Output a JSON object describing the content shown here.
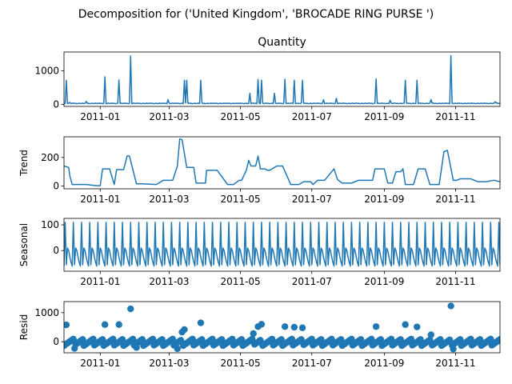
{
  "figure": {
    "title": "Decomposition for ('United Kingdom', 'BROCADE RING PURSE ')",
    "line_color": "#1f77b4",
    "x_tick_labels": [
      "2011-01",
      "2011-03",
      "2011-05",
      "2011-07",
      "2011-09",
      "2011-11"
    ]
  },
  "chart_data": [
    {
      "type": "line",
      "title": "Quantity",
      "ylabel": "",
      "xlim": [
        "2010-12-01",
        "2011-12-09"
      ],
      "ylim": [
        -60,
        1560
      ],
      "y_ticks": [
        0,
        1000
      ],
      "y_tick_labels": [
        "0",
        "1000"
      ],
      "baseline": 30,
      "spikes": [
        {
          "x": "2010-12-03",
          "y": 720
        },
        {
          "x": "2010-12-06",
          "y": 60
        },
        {
          "x": "2010-12-20",
          "y": 90
        },
        {
          "x": "2011-01-05",
          "y": 820
        },
        {
          "x": "2011-01-17",
          "y": 730
        },
        {
          "x": "2011-01-27",
          "y": 1440
        },
        {
          "x": "2011-02-28",
          "y": 140
        },
        {
          "x": "2011-03-14",
          "y": 720
        },
        {
          "x": "2011-03-16",
          "y": 720
        },
        {
          "x": "2011-03-28",
          "y": 720
        },
        {
          "x": "2011-05-09",
          "y": 330
        },
        {
          "x": "2011-05-16",
          "y": 740
        },
        {
          "x": "2011-05-19",
          "y": 720
        },
        {
          "x": "2011-05-30",
          "y": 330
        },
        {
          "x": "2011-06-08",
          "y": 750
        },
        {
          "x": "2011-06-16",
          "y": 720
        },
        {
          "x": "2011-06-23",
          "y": 720
        },
        {
          "x": "2011-07-11",
          "y": 140
        },
        {
          "x": "2011-07-22",
          "y": 180
        },
        {
          "x": "2011-08-25",
          "y": 760
        },
        {
          "x": "2011-09-06",
          "y": 120
        },
        {
          "x": "2011-09-19",
          "y": 720
        },
        {
          "x": "2011-09-29",
          "y": 720
        },
        {
          "x": "2011-10-11",
          "y": 140
        },
        {
          "x": "2011-10-28",
          "y": 1450
        },
        {
          "x": "2011-12-05",
          "y": 80
        }
      ]
    },
    {
      "type": "line",
      "title": "",
      "ylabel": "Trend",
      "xlim": [
        "2010-12-01",
        "2011-12-09"
      ],
      "ylim": [
        -20,
        345
      ],
      "y_ticks": [
        0,
        200
      ],
      "y_tick_labels": [
        "0",
        "200"
      ],
      "x": [
        "2010-12-01",
        "2010-12-05",
        "2010-12-06",
        "2010-12-08",
        "2010-12-20",
        "2010-12-29",
        "2011-01-01",
        "2011-01-03",
        "2011-01-09",
        "2011-01-13",
        "2011-01-15",
        "2011-01-21",
        "2011-01-24",
        "2011-01-26",
        "2011-02-01",
        "2011-02-06",
        "2011-02-18",
        "2011-02-24",
        "2011-03-04",
        "2011-03-08",
        "2011-03-10",
        "2011-03-12",
        "2011-03-16",
        "2011-03-22",
        "2011-03-24",
        "2011-04-01",
        "2011-04-02",
        "2011-04-11",
        "2011-04-20",
        "2011-04-25",
        "2011-04-30",
        "2011-05-02",
        "2011-05-06",
        "2011-05-08",
        "2011-05-10",
        "2011-05-14",
        "2011-05-16",
        "2011-05-18",
        "2011-05-22",
        "2011-05-24",
        "2011-05-26",
        "2011-06-01",
        "2011-06-06",
        "2011-06-13",
        "2011-06-20",
        "2011-06-24",
        "2011-06-30",
        "2011-07-02",
        "2011-07-06",
        "2011-07-12",
        "2011-07-20",
        "2011-07-23",
        "2011-07-27",
        "2011-08-04",
        "2011-08-10",
        "2011-08-22",
        "2011-08-24",
        "2011-09-01",
        "2011-09-04",
        "2011-09-08",
        "2011-09-11",
        "2011-09-15",
        "2011-09-17",
        "2011-09-19",
        "2011-09-26",
        "2011-09-30",
        "2011-10-06",
        "2011-10-10",
        "2011-10-18",
        "2011-10-22",
        "2011-10-25",
        "2011-10-30",
        "2011-11-02",
        "2011-11-05",
        "2011-11-14",
        "2011-11-20",
        "2011-11-27",
        "2011-12-04",
        "2011-12-09"
      ],
      "y": [
        140,
        130,
        70,
        10,
        10,
        2,
        2,
        120,
        120,
        10,
        115,
        115,
        210,
        210,
        15,
        15,
        10,
        40,
        40,
        140,
        330,
        325,
        130,
        130,
        20,
        20,
        110,
        110,
        10,
        10,
        40,
        40,
        110,
        180,
        140,
        140,
        210,
        120,
        120,
        110,
        110,
        140,
        140,
        10,
        10,
        30,
        30,
        10,
        40,
        40,
        120,
        45,
        20,
        20,
        40,
        40,
        120,
        120,
        20,
        20,
        100,
        100,
        120,
        10,
        10,
        120,
        120,
        10,
        10,
        240,
        250,
        40,
        40,
        50,
        50,
        30,
        30,
        40,
        30
      ]
    },
    {
      "type": "line",
      "title": "",
      "ylabel": "Seasonal",
      "xlim": [
        "2010-12-01",
        "2011-12-09"
      ],
      "ylim": [
        -80,
        125
      ],
      "y_ticks": [
        0,
        100
      ],
      "y_tick_labels": [
        "0",
        "100"
      ],
      "period_days": 7,
      "weekly_pattern": [
        -60,
        110,
        -55,
        10,
        0,
        -25,
        -45
      ]
    },
    {
      "type": "scatter",
      "title": "",
      "ylabel": "Resid",
      "xlim": [
        "2010-12-01",
        "2011-12-09"
      ],
      "ylim": [
        -380,
        1380
      ],
      "y_ticks": [
        0,
        1000
      ],
      "y_tick_labels": [
        "0",
        "1000"
      ],
      "marker_color": "#1f77b4",
      "outliers": [
        {
          "x": "2010-12-03",
          "y": 580
        },
        {
          "x": "2011-01-05",
          "y": 590
        },
        {
          "x": "2011-01-17",
          "y": 590
        },
        {
          "x": "2011-01-27",
          "y": 1130
        },
        {
          "x": "2011-03-12",
          "y": 330
        },
        {
          "x": "2011-03-14",
          "y": 420
        },
        {
          "x": "2011-03-28",
          "y": 650
        },
        {
          "x": "2011-05-12",
          "y": 280
        },
        {
          "x": "2011-05-16",
          "y": 520
        },
        {
          "x": "2011-05-19",
          "y": 600
        },
        {
          "x": "2011-06-08",
          "y": 520
        },
        {
          "x": "2011-06-16",
          "y": 500
        },
        {
          "x": "2011-06-23",
          "y": 480
        },
        {
          "x": "2011-08-25",
          "y": 520
        },
        {
          "x": "2011-09-19",
          "y": 590
        },
        {
          "x": "2011-09-29",
          "y": 510
        },
        {
          "x": "2011-10-11",
          "y": 240
        },
        {
          "x": "2011-10-28",
          "y": 1230
        },
        {
          "x": "2011-10-30",
          "y": -250
        },
        {
          "x": "2010-12-10",
          "y": -230
        },
        {
          "x": "2011-02-01",
          "y": -200
        },
        {
          "x": "2011-03-08",
          "y": -240
        }
      ]
    }
  ]
}
